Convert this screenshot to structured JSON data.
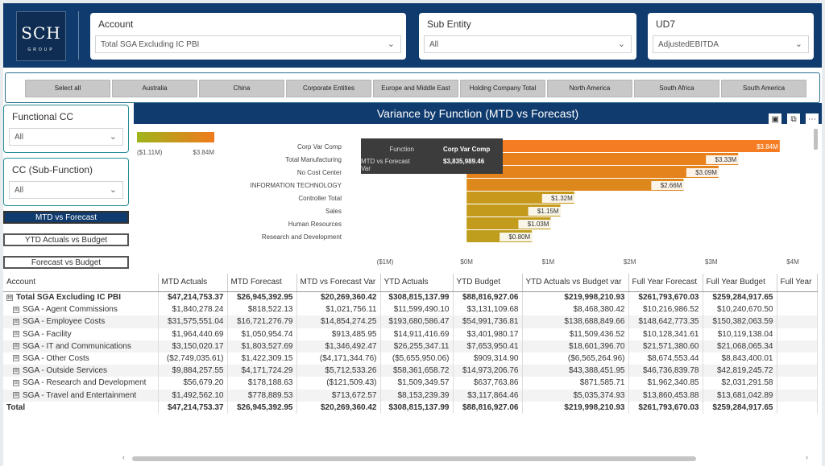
{
  "logo": {
    "main": "SCH",
    "sub": "GROUP"
  },
  "top_slicers": [
    {
      "title": "Account",
      "value": "Total SGA Excluding IC PBI"
    },
    {
      "title": "Sub Entity",
      "value": "All"
    },
    {
      "title": "UD7",
      "value": "AdjustedEBITDA"
    }
  ],
  "regions": [
    "Select all",
    "Australia",
    "China",
    "Corporate Entities",
    "Europe and Middle East",
    "Holding Company Total",
    "North America",
    "South Africa",
    "South America"
  ],
  "left_slicers": [
    {
      "title": "Functional CC",
      "value": "All"
    },
    {
      "title": "CC (Sub-Function)",
      "value": "All"
    }
  ],
  "toggles": [
    "MTD vs Forecast",
    "YTD Actuals vs Budget",
    "Forecast vs Budget"
  ],
  "chart": {
    "title": "Variance by Function (MTD vs Forecast)",
    "legend_min": "($1.11M)",
    "legend_max": "$3.84M",
    "tooltip": {
      "label1": "Function",
      "value1": "Corp Var Comp",
      "label2": "MTD vs Forecast Var",
      "value2": "$3,835,989.46"
    },
    "header_icons": [
      "pin-icon",
      "focus-icon",
      "more-icon"
    ]
  },
  "chart_data": {
    "type": "bar",
    "orientation": "horizontal",
    "title": "Variance by Function (MTD vs Forecast)",
    "categories": [
      "Corp Var Comp",
      "Total Manufacturing",
      "No Cost Center",
      "INFORMATION TECHNOLOGY",
      "Controller Total",
      "Sales",
      "Human Resources",
      "Research and Development"
    ],
    "values": [
      3.84,
      3.33,
      3.09,
      2.66,
      1.32,
      1.15,
      1.03,
      0.8
    ],
    "data_labels": [
      "$3.84M",
      "$3.33M",
      "$3.09M",
      "$2.66M",
      "$1.32M",
      "$1.15M",
      "$1.03M",
      "$0.80M"
    ],
    "xticks": [
      -1,
      0,
      1,
      2,
      3,
      4
    ],
    "xtick_labels": [
      "($1M)",
      "$0M",
      "$1M",
      "$2M",
      "$3M",
      "$4M"
    ],
    "xlim": [
      -1,
      4
    ],
    "colors": {
      "low": "#9fb41c",
      "high": "#f07a1c",
      "highlight": "#f57c22"
    }
  },
  "table": {
    "columns": [
      "Account",
      "MTD Actuals",
      "MTD Forecast",
      "MTD vs Forecast Var",
      "YTD Actuals",
      "YTD Budget",
      "YTD Actuals vs Budget var",
      "Full Year Forecast",
      "Full Year Budget",
      "Full Year"
    ],
    "rows": [
      {
        "account": "Total SGA Excluding IC PBI",
        "expander": "⊟",
        "cells": [
          "$47,214,753.37",
          "$26,945,392.95",
          "$20,269,360.42",
          "$308,815,137.99",
          "$88,816,927.06",
          "$219,998,210.93",
          "$261,793,670.03",
          "$259,284,917.65",
          ""
        ]
      },
      {
        "account": "SGA - Agent Commissions",
        "expander": "⊞",
        "cells": [
          "$1,840,278.24",
          "$818,522.13",
          "$1,021,756.11",
          "$11,599,490.10",
          "$3,131,109.68",
          "$8,468,380.42",
          "$10,216,986.52",
          "$10,240,670.50",
          ""
        ]
      },
      {
        "account": "SGA - Employee Costs",
        "expander": "⊞",
        "cells": [
          "$31,575,551.04",
          "$16,721,276.79",
          "$14,854,274.25",
          "$193,680,586.47",
          "$54,991,736.81",
          "$138,688,849.66",
          "$148,642,773.35",
          "$150,382,063.59",
          ""
        ]
      },
      {
        "account": "SGA - Facility",
        "expander": "⊞",
        "cells": [
          "$1,964,440.69",
          "$1,050,954.74",
          "$913,485.95",
          "$14,911,416.69",
          "$3,401,980.17",
          "$11,509,436.52",
          "$10,128,341.61",
          "$10,119,138.04",
          ""
        ]
      },
      {
        "account": "SGA - IT and Communications",
        "expander": "⊞",
        "cells": [
          "$3,150,020.17",
          "$1,803,527.69",
          "$1,346,492.47",
          "$26,255,347.11",
          "$7,653,950.41",
          "$18,601,396.70",
          "$21,571,380.60",
          "$21,068,065.34",
          ""
        ]
      },
      {
        "account": "SGA - Other Costs",
        "expander": "⊞",
        "cells": [
          "($2,749,035.61)",
          "$1,422,309.15",
          "($4,171,344.76)",
          "($5,655,950.06)",
          "$909,314.90",
          "($6,565,264.96)",
          "$8,674,553.44",
          "$8,843,400.01",
          ""
        ]
      },
      {
        "account": "SGA - Outside Services",
        "expander": "⊞",
        "cells": [
          "$9,884,257.55",
          "$4,171,724.29",
          "$5,712,533.26",
          "$58,361,658.72",
          "$14,973,206.76",
          "$43,388,451.95",
          "$46,736,839.78",
          "$42,819,245.72",
          ""
        ]
      },
      {
        "account": "SGA - Research and Development",
        "expander": "⊞",
        "cells": [
          "$56,679.20",
          "$178,188.63",
          "($121,509.43)",
          "$1,509,349.57",
          "$637,763.86",
          "$871,585.71",
          "$1,962,340.85",
          "$2,031,291.58",
          ""
        ]
      },
      {
        "account": "SGA - Travel and Entertainment",
        "expander": "⊞",
        "cells": [
          "$1,492,562.10",
          "$778,889.53",
          "$713,672.57",
          "$8,153,239.39",
          "$3,117,864.46",
          "$5,035,374.93",
          "$13,860,453.88",
          "$13,681,042.89",
          ""
        ]
      },
      {
        "account": "Total",
        "expander": "",
        "cells": [
          "$47,214,753.37",
          "$26,945,392.95",
          "$20,269,360.42",
          "$308,815,137.99",
          "$88,816,927.06",
          "$219,998,210.93",
          "$261,793,670.03",
          "$259,284,917.65",
          ""
        ]
      }
    ]
  }
}
